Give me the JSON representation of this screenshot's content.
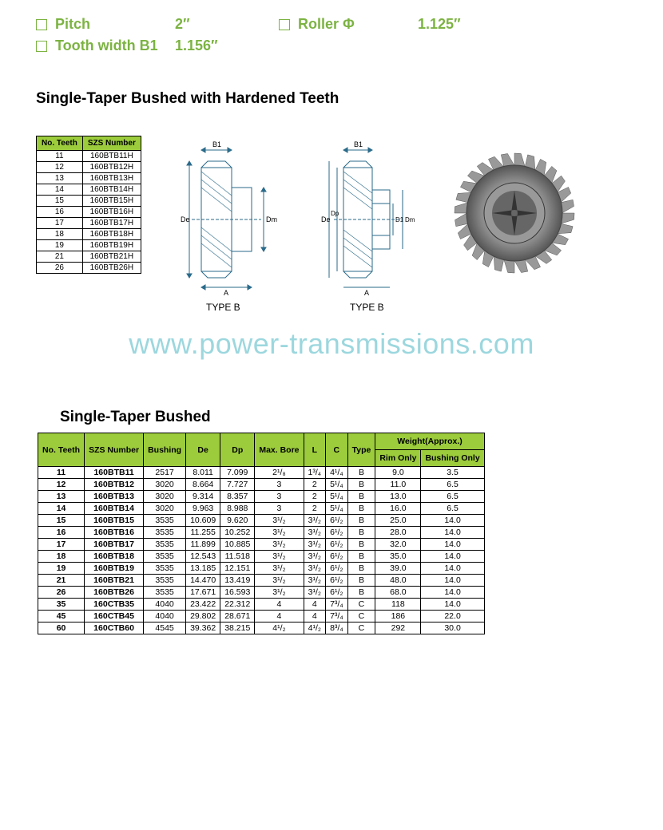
{
  "specs": {
    "pitch": {
      "label": "Pitch",
      "value": "2″"
    },
    "roller": {
      "label": "Roller Φ",
      "value": "1.125″"
    },
    "tooth_width": {
      "label": "Tooth width B1",
      "value": "1.156″"
    }
  },
  "section1_title": "Single-Taper Bushed with Hardened Teeth",
  "small_table": {
    "headers": [
      "No. Teeth",
      "SZS Number"
    ],
    "rows": [
      [
        "11",
        "160BTB11H"
      ],
      [
        "12",
        "160BTB12H"
      ],
      [
        "13",
        "160BTB13H"
      ],
      [
        "14",
        "160BTB14H"
      ],
      [
        "15",
        "160BTB15H"
      ],
      [
        "16",
        "160BTB16H"
      ],
      [
        "17",
        "160BTB17H"
      ],
      [
        "18",
        "160BTB18H"
      ],
      [
        "19",
        "160BTB19H"
      ],
      [
        "21",
        "160BTB21H"
      ],
      [
        "26",
        "160BTB26H"
      ]
    ]
  },
  "diagram_labels": {
    "type_b": "TYPE B",
    "b1": "B1",
    "de": "De",
    "dp": "Dp",
    "dm": "Dm",
    "d1": "D1",
    "a": "A"
  },
  "watermark": "www.power-transmissions.com",
  "section2_title": "Single-Taper Bushed",
  "big_table": {
    "headers": {
      "no_teeth": "No. Teeth",
      "szs": "SZS Number",
      "bushing": "Bushing",
      "de": "De",
      "dp": "Dp",
      "max_bore": "Max. Bore",
      "l": "L",
      "c": "C",
      "type": "Type",
      "weight": "Weight(Approx.)",
      "rim_only": "Rim Only",
      "bushing_only": "Bushing Only"
    },
    "groups": [
      [
        [
          "11",
          "160BTB11",
          "2517",
          "8.011",
          "7.099",
          "2¹/₈",
          "1³/₄",
          "4¹/₄",
          "B",
          "9.0",
          "3.5"
        ],
        [
          "12",
          "160BTB12",
          "3020",
          "8.664",
          "7.727",
          "3",
          "2",
          "5¹/₄",
          "B",
          "11.0",
          "6.5"
        ],
        [
          "13",
          "160BTB13",
          "3020",
          "9.314",
          "8.357",
          "3",
          "2",
          "5¹/₄",
          "B",
          "13.0",
          "6.5"
        ],
        [
          "14",
          "160BTB14",
          "3020",
          "9.963",
          "8.988",
          "3",
          "2",
          "5¹/₄",
          "B",
          "16.0",
          "6.5"
        ]
      ],
      [
        [
          "15",
          "160BTB15",
          "3535",
          "10.609",
          "9.620",
          "3¹/₂",
          "3¹/₂",
          "6¹/₂",
          "B",
          "25.0",
          "14.0"
        ],
        [
          "16",
          "160BTB16",
          "3535",
          "11.255",
          "10.252",
          "3¹/₂",
          "3¹/₂",
          "6¹/₂",
          "B",
          "28.0",
          "14.0"
        ],
        [
          "17",
          "160BTB17",
          "3535",
          "11.899",
          "10.885",
          "3¹/₂",
          "3¹/₂",
          "6¹/₂",
          "B",
          "32.0",
          "14.0"
        ]
      ],
      [
        [
          "18",
          "160BTB18",
          "3535",
          "12.543",
          "11.518",
          "3¹/₂",
          "3¹/₂",
          "6¹/₂",
          "B",
          "35.0",
          "14.0"
        ],
        [
          "19",
          "160BTB19",
          "3535",
          "13.185",
          "12.151",
          "3¹/₂",
          "3¹/₂",
          "6¹/₂",
          "B",
          "39.0",
          "14.0"
        ],
        [
          "21",
          "160BTB21",
          "3535",
          "14.470",
          "13.419",
          "3¹/₂",
          "3¹/₂",
          "6¹/₂",
          "B",
          "48.0",
          "14.0"
        ]
      ],
      [
        [
          "26",
          "160BTB26",
          "3535",
          "17.671",
          "16.593",
          "3¹/₂",
          "3¹/₂",
          "6¹/₂",
          "B",
          "68.0",
          "14.0"
        ],
        [
          "35",
          "160CTB35",
          "4040",
          "23.422",
          "22.312",
          "4",
          "4",
          "7³/₄",
          "C",
          "118",
          "14.0"
        ],
        [
          "45",
          "160CTB45",
          "4040",
          "29.802",
          "28.671",
          "4",
          "4",
          "7³/₄",
          "C",
          "186",
          "22.0"
        ],
        [
          "60",
          "160CTB60",
          "4545",
          "39.362",
          "38.215",
          "4¹/₂",
          "4¹/₂",
          "8³/₄",
          "C",
          "292",
          "30.0"
        ]
      ]
    ]
  }
}
